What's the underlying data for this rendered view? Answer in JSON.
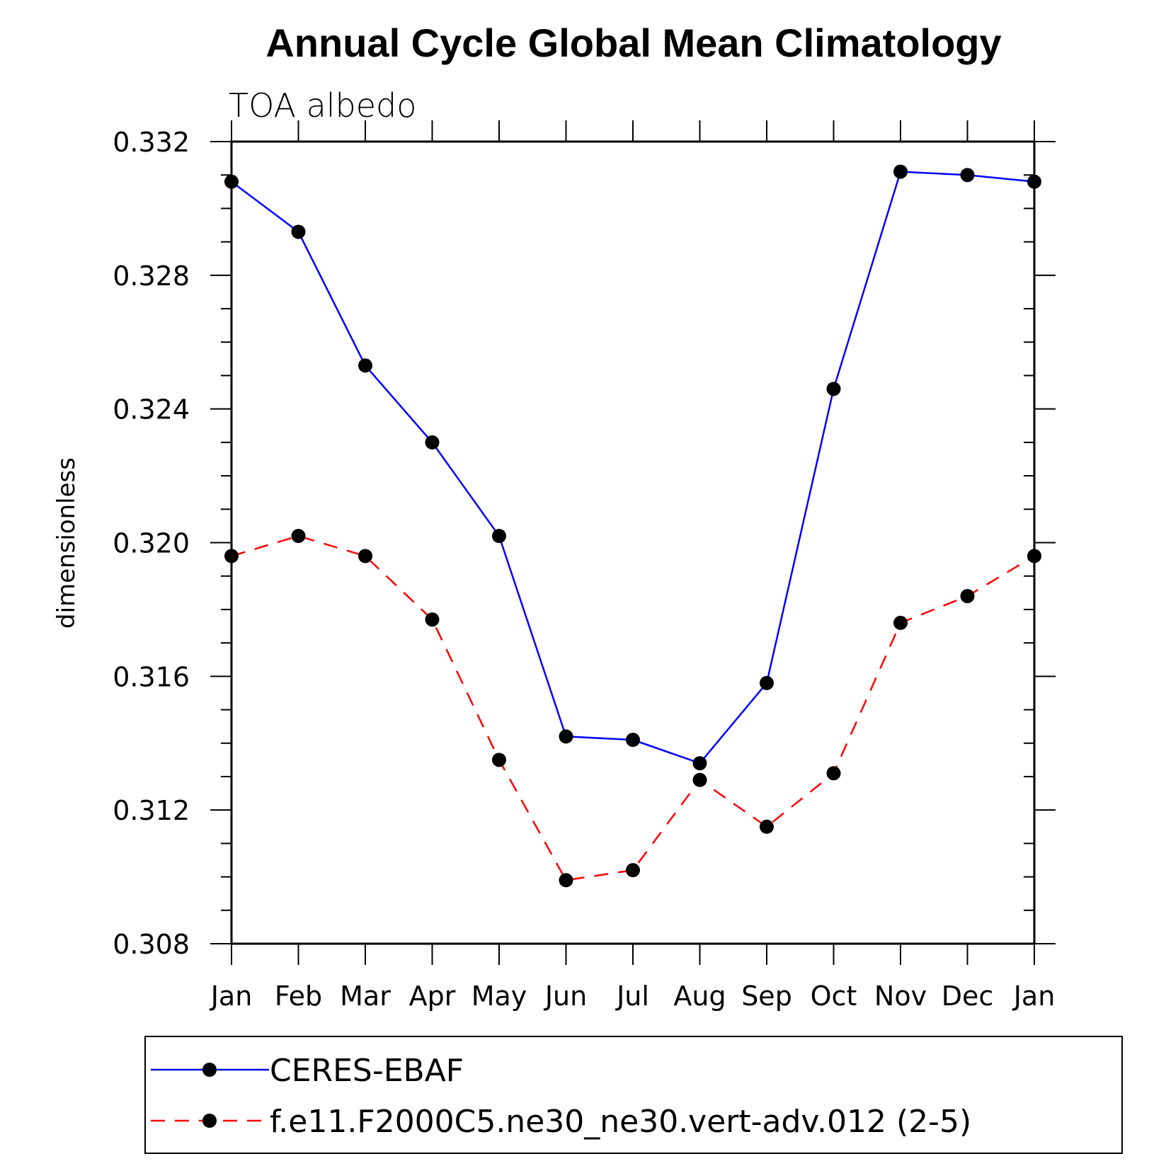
{
  "chart_data": {
    "type": "line",
    "title": "Annual Cycle Global Mean Climatology",
    "subtitle": "TOA albedo",
    "ylabel": "dimensionless",
    "xlabel": "",
    "categories": [
      "Jan",
      "Feb",
      "Mar",
      "Apr",
      "May",
      "Jun",
      "Jul",
      "Aug",
      "Sep",
      "Oct",
      "Nov",
      "Dec",
      "Jan"
    ],
    "ylim": [
      0.308,
      0.332
    ],
    "yticks": [
      "0.308",
      "0.312",
      "0.316",
      "0.320",
      "0.324",
      "0.328",
      "0.332"
    ],
    "legend_position": "bottom",
    "series": [
      {
        "name": "CERES-EBAF",
        "color": "#0000ff",
        "style": "solid",
        "marker": "filled-circle",
        "values": [
          0.3308,
          0.3293,
          0.3253,
          0.323,
          0.3202,
          0.3142,
          0.3141,
          0.3134,
          0.3158,
          0.3246,
          0.3311,
          0.331,
          0.3308
        ]
      },
      {
        "name": "f.e11.F2000C5.ne30_ne30.vert-adv.012 (2-5)",
        "color": "#ff0000",
        "style": "dashed",
        "marker": "filled-circle",
        "values": [
          0.3196,
          0.3202,
          0.3196,
          0.3177,
          0.3135,
          0.3099,
          0.3102,
          0.3129,
          0.3115,
          0.3131,
          0.3176,
          0.3184,
          0.3196
        ]
      }
    ]
  }
}
